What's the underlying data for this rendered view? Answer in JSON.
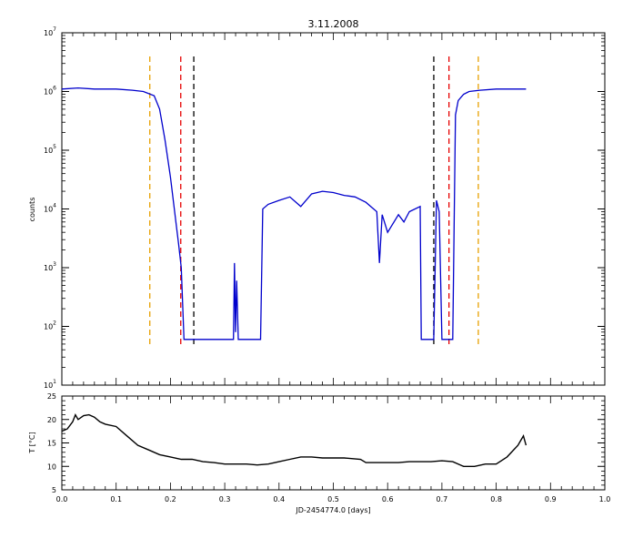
{
  "chart_data": [
    {
      "type": "line",
      "title": "3.11.2008",
      "xlabel": "",
      "ylabel": "counts",
      "xlim": [
        0.0,
        1.0
      ],
      "ylim": [
        10,
        10000000
      ],
      "yscale": "log",
      "grid": false,
      "y_tick_labels": [
        {
          "base": "10",
          "exp": "1"
        },
        {
          "base": "10",
          "exp": "2"
        },
        {
          "base": "10",
          "exp": "3"
        },
        {
          "base": "10",
          "exp": "4"
        },
        {
          "base": "10",
          "exp": "5"
        },
        {
          "base": "10",
          "exp": "6"
        },
        {
          "base": "10",
          "exp": "7"
        }
      ],
      "series": [
        {
          "color": "#0000cc",
          "x": [
            0.0,
            0.03,
            0.06,
            0.1,
            0.13,
            0.15,
            0.17,
            0.18,
            0.19,
            0.2,
            0.21,
            0.215,
            0.22,
            0.225,
            0.23,
            0.24,
            0.26,
            0.28,
            0.3,
            0.316,
            0.318,
            0.32,
            0.322,
            0.325,
            0.328,
            0.33,
            0.35,
            0.366,
            0.37,
            0.38,
            0.4,
            0.42,
            0.44,
            0.46,
            0.48,
            0.5,
            0.52,
            0.54,
            0.56,
            0.58,
            0.585,
            0.59,
            0.6,
            0.62,
            0.63,
            0.64,
            0.66,
            0.662,
            0.68,
            0.685,
            0.69,
            0.695,
            0.7,
            0.705,
            0.71,
            0.715,
            0.72,
            0.725,
            0.73,
            0.74,
            0.75,
            0.77,
            0.8,
            0.83,
            0.855
          ],
          "y": [
            1100000,
            1150000,
            1100000,
            1100000,
            1050000,
            1000000,
            850000,
            500000,
            150000,
            35000,
            6000,
            2500,
            1000,
            60,
            60,
            60,
            60,
            60,
            60,
            60,
            1200,
            80,
            600,
            60,
            60,
            60,
            60,
            60,
            10000,
            12000,
            14000,
            16000,
            11000,
            18000,
            20000,
            19000,
            17000,
            16000,
            13000,
            9000,
            1200,
            8000,
            4000,
            8000,
            6000,
            9000,
            11000,
            60,
            60,
            60,
            14000,
            9000,
            60,
            60,
            60,
            60,
            60,
            400000,
            700000,
            900000,
            1000000,
            1050000,
            1100000,
            1100000,
            1100000
          ]
        }
      ],
      "vertical_lines": [
        {
          "x": 0.162,
          "color": "#e8a000"
        },
        {
          "x": 0.767,
          "color": "#e8a000"
        },
        {
          "x": 0.219,
          "color": "#e60000"
        },
        {
          "x": 0.713,
          "color": "#e60000"
        },
        {
          "x": 0.243,
          "color": "#000000"
        },
        {
          "x": 0.685,
          "color": "#000000"
        }
      ]
    },
    {
      "type": "line",
      "title": "",
      "xlabel": "JD-2454774.0  [days]",
      "ylabel": "T [°C]",
      "xlim": [
        0.0,
        1.0
      ],
      "ylim": [
        5,
        25
      ],
      "grid": false,
      "x_tick_labels": [
        "0.0",
        "0.1",
        "0.2",
        "0.3",
        "0.4",
        "0.5",
        "0.6",
        "0.7",
        "0.8",
        "0.9",
        "1.0"
      ],
      "y_tick_labels": [
        "5",
        "10",
        "15",
        "20",
        "25"
      ],
      "series": [
        {
          "color": "#000000",
          "x": [
            0.0,
            0.01,
            0.02,
            0.025,
            0.03,
            0.04,
            0.05,
            0.06,
            0.07,
            0.08,
            0.1,
            0.12,
            0.14,
            0.16,
            0.18,
            0.2,
            0.22,
            0.24,
            0.26,
            0.28,
            0.3,
            0.32,
            0.34,
            0.36,
            0.38,
            0.4,
            0.42,
            0.44,
            0.46,
            0.48,
            0.5,
            0.52,
            0.55,
            0.56,
            0.58,
            0.6,
            0.62,
            0.64,
            0.66,
            0.68,
            0.7,
            0.72,
            0.74,
            0.76,
            0.78,
            0.8,
            0.82,
            0.84,
            0.845,
            0.85,
            0.855
          ],
          "y": [
            17.5,
            18.0,
            19.5,
            21.0,
            20.0,
            20.8,
            21.0,
            20.5,
            19.5,
            19.0,
            18.5,
            16.5,
            14.5,
            13.5,
            12.5,
            12.0,
            11.5,
            11.5,
            11.0,
            10.8,
            10.5,
            10.5,
            10.5,
            10.3,
            10.5,
            11.0,
            11.5,
            12.0,
            12.0,
            11.8,
            11.8,
            11.8,
            11.5,
            10.8,
            10.8,
            10.8,
            10.8,
            11.0,
            11.0,
            11.0,
            11.2,
            11.0,
            10.0,
            10.0,
            10.5,
            10.5,
            12.0,
            14.5,
            15.5,
            16.5,
            14.5
          ]
        }
      ]
    }
  ]
}
